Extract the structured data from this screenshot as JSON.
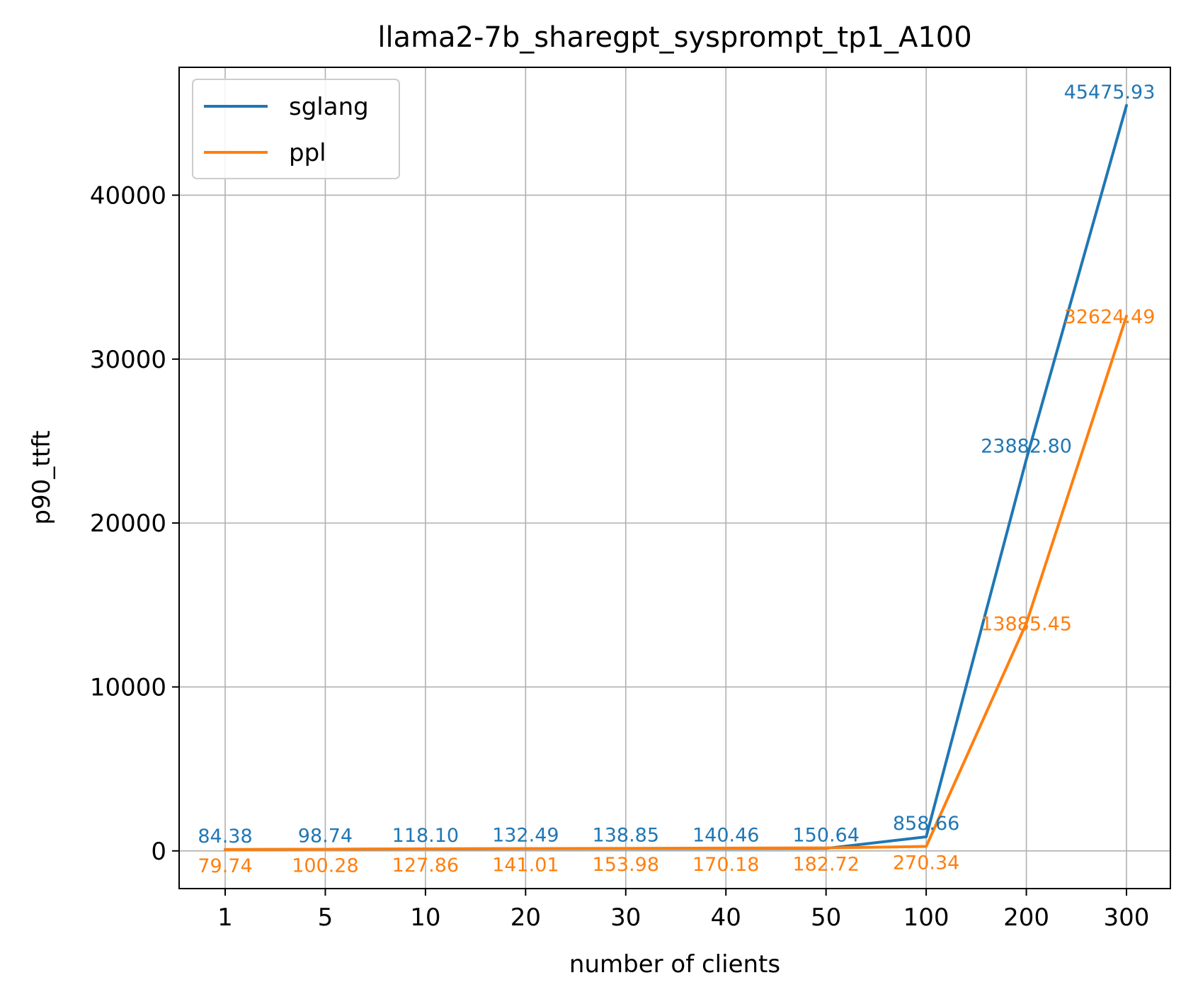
{
  "chart_data": {
    "type": "line",
    "title": "llama2-7b_sharegpt_sysprompt_tp1_A100",
    "xlabel": "number of clients",
    "ylabel": "p90_ttft",
    "x": [
      "1",
      "5",
      "10",
      "20",
      "30",
      "40",
      "50",
      "100",
      "200",
      "300"
    ],
    "ylim": [
      -2300,
      47800
    ],
    "yticks": [
      0,
      10000,
      20000,
      30000,
      40000
    ],
    "yticks_labels": [
      "0",
      "10000",
      "20000",
      "30000",
      "40000"
    ],
    "grid": true,
    "legend_position": "top-left",
    "series": [
      {
        "name": "sglang",
        "color": "#1f77b4",
        "values": [
          84.38,
          98.74,
          118.1,
          132.49,
          138.85,
          140.46,
          150.64,
          858.66,
          23882.8,
          45475.93
        ],
        "labels": [
          "84.38",
          "98.74",
          "118.10",
          "132.49",
          "138.85",
          "140.46",
          "150.64",
          "858.66",
          "23882.80",
          "45475.93"
        ]
      },
      {
        "name": "ppl",
        "color": "#ff7f0e",
        "values": [
          79.74,
          100.28,
          127.86,
          141.01,
          153.98,
          170.18,
          182.72,
          270.34,
          13885.45,
          32624.49
        ],
        "labels": [
          "79.74",
          "100.28",
          "127.86",
          "141.01",
          "153.98",
          "170.18",
          "182.72",
          "270.34",
          "13885.45",
          "32624.49"
        ]
      }
    ]
  }
}
